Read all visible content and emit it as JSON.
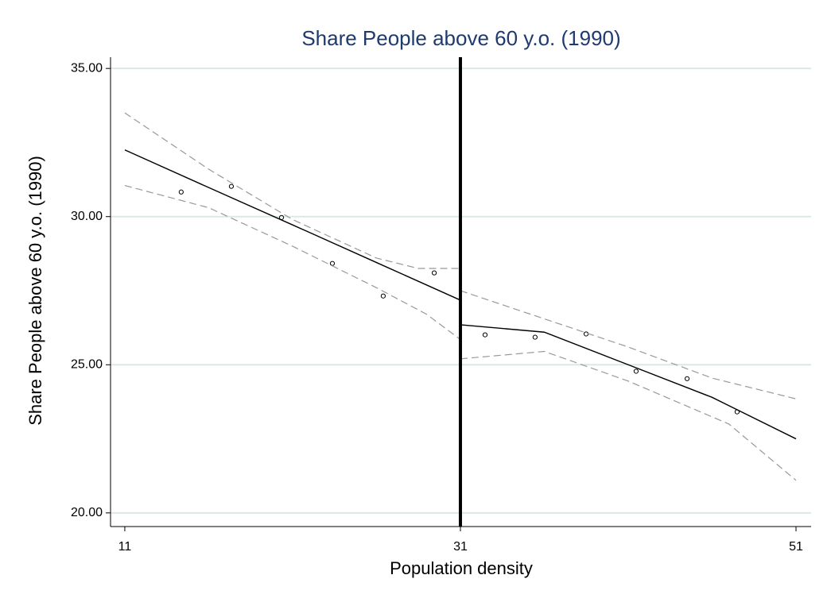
{
  "chart_data": {
    "type": "scatter",
    "title": "Share People above 60 y.o. (1990)",
    "xlabel": "Population density",
    "ylabel": "Share People above 60 y.o. (1990)",
    "xlim": [
      10.15,
      51.9
    ],
    "ylim": [
      19.54,
      35.38
    ],
    "xticks": [
      11,
      31,
      51
    ],
    "yticks": [
      {
        "value": 20,
        "label": "20.00"
      },
      {
        "value": 25,
        "label": "25.00"
      },
      {
        "value": 30,
        "label": "30.00"
      },
      {
        "value": 35,
        "label": "35.00"
      }
    ],
    "grid": true,
    "cutoff": 31,
    "series": [
      {
        "style": "markers",
        "color": "#000000",
        "x": [
          14.36,
          17.35,
          20.34,
          23.37,
          26.4,
          29.44,
          32.47,
          35.45,
          38.49,
          41.47,
          44.51,
          47.49
        ],
        "values": [
          30.83,
          31.02,
          29.97,
          28.42,
          27.32,
          28.1,
          26.01,
          25.93,
          26.04,
          24.78,
          24.53,
          23.41
        ]
      },
      {
        "style": "solid",
        "color": "#000000",
        "x": [
          11,
          16,
          21,
          26,
          31
        ],
        "values": [
          32.25,
          30.98,
          29.72,
          28.45,
          27.18
        ]
      },
      {
        "style": "dashed",
        "color": "#999999",
        "x": [
          11,
          16,
          21,
          26,
          28.5,
          31
        ],
        "values": [
          33.5,
          31.6,
          29.9,
          28.6,
          28.25,
          28.25
        ]
      },
      {
        "style": "dashed",
        "color": "#999999",
        "x": [
          11,
          16,
          21,
          26,
          29,
          31
        ],
        "values": [
          31.05,
          30.3,
          29.0,
          27.6,
          26.7,
          25.85
        ]
      },
      {
        "style": "solid",
        "color": "#000000",
        "x": [
          31,
          36,
          41,
          46,
          51
        ],
        "values": [
          26.35,
          26.1,
          25.0,
          23.9,
          22.5
        ]
      },
      {
        "style": "dashed",
        "color": "#999999",
        "x": [
          31,
          36,
          41,
          46,
          51
        ],
        "values": [
          27.5,
          26.55,
          25.6,
          24.55,
          23.85
        ]
      },
      {
        "style": "dashed",
        "color": "#999999",
        "x": [
          31,
          36,
          41,
          47,
          51
        ],
        "values": [
          25.2,
          25.45,
          24.45,
          23.0,
          21.1
        ]
      }
    ]
  }
}
